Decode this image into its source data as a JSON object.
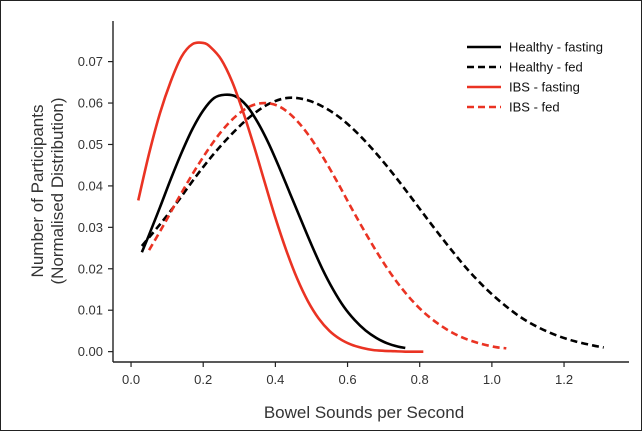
{
  "chart_data": {
    "type": "line",
    "title": "",
    "xlabel": "Bowel Sounds per Second",
    "ylabel_line1": "Number of Participants",
    "ylabel_line2": "(Normalised Distribution)",
    "xlim": [
      -0.05,
      1.38
    ],
    "ylim": [
      -0.0025,
      0.0798
    ],
    "xticks": [
      0.0,
      0.2,
      0.4,
      0.6,
      0.8,
      1.0,
      1.2
    ],
    "xtick_labels": [
      "0.0",
      "0.2",
      "0.4",
      "0.6",
      "0.8",
      "1.0",
      "1.2"
    ],
    "yticks": [
      0.0,
      0.01,
      0.02,
      0.03,
      0.04,
      0.05,
      0.06,
      0.07
    ],
    "ytick_labels": [
      "0.00",
      "0.01",
      "0.02",
      "0.03",
      "0.04",
      "0.05",
      "0.06",
      "0.07"
    ],
    "grid": false,
    "legend_position": "top-right",
    "series": [
      {
        "name": "Healthy - fasting",
        "color": "#000000",
        "dash": "solid",
        "x": [
          0.03,
          0.05,
          0.08,
          0.11,
          0.14,
          0.17,
          0.2,
          0.23,
          0.26,
          0.29,
          0.32,
          0.35,
          0.38,
          0.41,
          0.44,
          0.47,
          0.5,
          0.53,
          0.56,
          0.59,
          0.62,
          0.65,
          0.68,
          0.71,
          0.74,
          0.76
        ],
        "y": [
          0.024,
          0.0282,
          0.0348,
          0.0416,
          0.048,
          0.0537,
          0.0582,
          0.0612,
          0.062,
          0.0616,
          0.0594,
          0.0555,
          0.0505,
          0.0446,
          0.0383,
          0.032,
          0.0258,
          0.02,
          0.015,
          0.0108,
          0.0076,
          0.0051,
          0.0033,
          0.002,
          0.0012,
          0.0009
        ]
      },
      {
        "name": "Healthy - fed",
        "color": "#000000",
        "dash": "dashed",
        "x": [
          0.03,
          0.08,
          0.13,
          0.18,
          0.23,
          0.28,
          0.33,
          0.38,
          0.43,
          0.48,
          0.53,
          0.58,
          0.63,
          0.68,
          0.73,
          0.78,
          0.83,
          0.88,
          0.93,
          0.98,
          1.03,
          1.08,
          1.13,
          1.18,
          1.23,
          1.28,
          1.31
        ],
        "y": [
          0.0255,
          0.0307,
          0.0363,
          0.0423,
          0.0478,
          0.0526,
          0.0567,
          0.0597,
          0.0612,
          0.0609,
          0.0592,
          0.0564,
          0.0525,
          0.0478,
          0.0425,
          0.0368,
          0.031,
          0.0254,
          0.0201,
          0.0155,
          0.0116,
          0.0083,
          0.0058,
          0.0039,
          0.0025,
          0.0015,
          0.001
        ]
      },
      {
        "name": "IBS - fasting",
        "color": "#ea3323",
        "dash": "solid",
        "x": [
          0.02,
          0.05,
          0.08,
          0.11,
          0.14,
          0.17,
          0.2,
          0.22,
          0.25,
          0.28,
          0.31,
          0.34,
          0.37,
          0.4,
          0.43,
          0.46,
          0.49,
          0.52,
          0.55,
          0.58,
          0.61,
          0.64,
          0.67,
          0.7,
          0.73,
          0.76,
          0.81
        ],
        "y": [
          0.0365,
          0.0478,
          0.0575,
          0.0652,
          0.0712,
          0.0742,
          0.0745,
          0.0735,
          0.0705,
          0.0652,
          0.058,
          0.0498,
          0.041,
          0.0323,
          0.0245,
          0.0177,
          0.0122,
          0.008,
          0.005,
          0.003,
          0.0017,
          0.0009,
          0.0004,
          0.0002,
          0.0001,
          0.0,
          0.0
        ]
      },
      {
        "name": "IBS - fed",
        "color": "#ea3323",
        "dash": "dashed",
        "x": [
          0.05,
          0.09,
          0.13,
          0.17,
          0.21,
          0.25,
          0.29,
          0.33,
          0.37,
          0.41,
          0.45,
          0.49,
          0.53,
          0.57,
          0.61,
          0.65,
          0.69,
          0.73,
          0.77,
          0.81,
          0.85,
          0.89,
          0.93,
          0.97,
          1.01,
          1.04
        ],
        "y": [
          0.0245,
          0.0305,
          0.0368,
          0.0428,
          0.0483,
          0.0531,
          0.0568,
          0.0592,
          0.06,
          0.0592,
          0.0566,
          0.0525,
          0.0472,
          0.0412,
          0.0348,
          0.0286,
          0.0228,
          0.0176,
          0.0132,
          0.0096,
          0.0068,
          0.0046,
          0.003,
          0.0019,
          0.0011,
          0.0008
        ]
      }
    ]
  }
}
